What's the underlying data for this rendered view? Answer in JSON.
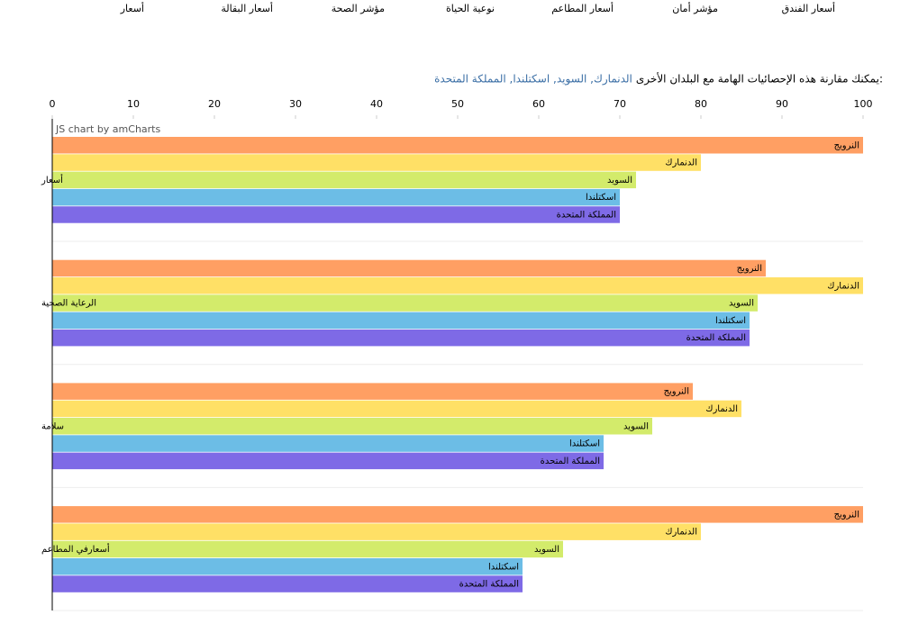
{
  "nav": [
    "أسعار الفندق",
    "مؤشر أمان",
    "أسعار المطاعم",
    "نوعية الحياة",
    "مؤشر الصحة",
    "أسعار البقالة",
    "أسعار"
  ],
  "intro": {
    "text": "يمكنك مقارنة هذه الإحصائيات الهامة مع البلدان الأخرى:",
    "links": "الدنمارك, السويد, اسكتلندا, المملكة المتحدة"
  },
  "chart_data": {
    "type": "hbar",
    "credit": "JS chart by amCharts",
    "categories": [
      "أسعار",
      "الرعاية الصحية",
      "سلامة",
      "أسعارفي المطاعم"
    ],
    "series": [
      {
        "name": "النرويج",
        "color": "#ff9f63",
        "values": [
          100,
          88,
          79,
          100
        ]
      },
      {
        "name": "الدنمارك",
        "color": "#ffe066",
        "values": [
          80,
          100,
          85,
          80
        ]
      },
      {
        "name": "السويد",
        "color": "#d3eb6b",
        "values": [
          72,
          87,
          74,
          63
        ]
      },
      {
        "name": "اسكتلندا",
        "color": "#6cbde6",
        "values": [
          70,
          86,
          68,
          58
        ]
      },
      {
        "name": "المملكة المتحدة",
        "color": "#7e6ae6",
        "values": [
          70,
          86,
          68,
          58
        ]
      }
    ],
    "xlim": [
      0,
      100
    ],
    "xticks": [
      0,
      10,
      20,
      30,
      40,
      50,
      60,
      70,
      80,
      90,
      100
    ],
    "grid": true
  }
}
